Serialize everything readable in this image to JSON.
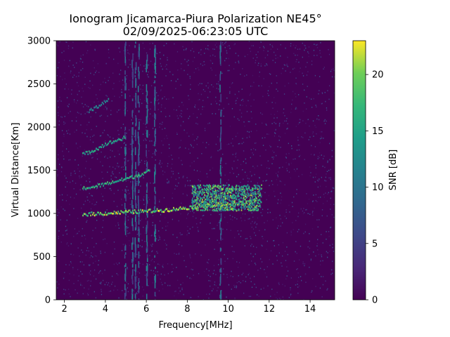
{
  "chart_data": {
    "type": "heatmap",
    "title_line1": "Ionogram Jicamarca-Piura Polarization NE45°",
    "title_line2": "02/09/2025-06:23:05 UTC",
    "xlabel": "Frequency[MHz]",
    "ylabel": "Virtual Distance[Km]",
    "xlim": [
      1.6,
      15.2
    ],
    "ylim": [
      0,
      3000
    ],
    "x_ticks": [
      2,
      4,
      6,
      8,
      10,
      12,
      14
    ],
    "y_ticks": [
      0,
      500,
      1000,
      1500,
      2000,
      2500,
      3000
    ],
    "colorbar": {
      "label": "SNR [dB]",
      "range": [
        0,
        23
      ],
      "ticks": [
        0,
        5,
        10,
        15,
        20
      ],
      "colormap": "viridis"
    },
    "background_level_db": 1,
    "traces": [
      {
        "name": "F-trace (1 hop)",
        "snr_db": 22,
        "points": [
          [
            2.9,
            990
          ],
          [
            4.0,
            1000
          ],
          [
            5.0,
            1015
          ],
          [
            6.0,
            1025
          ],
          [
            7.0,
            1040
          ],
          [
            7.8,
            1060
          ],
          [
            8.5,
            1080
          ],
          [
            9.5,
            1100
          ],
          [
            10.5,
            1115
          ],
          [
            11.2,
            1130
          ]
        ]
      },
      {
        "name": "F-trace (2 hop)",
        "snr_db": 18,
        "points": [
          [
            2.9,
            1290
          ],
          [
            3.5,
            1310
          ],
          [
            4.0,
            1340
          ],
          [
            4.5,
            1370
          ],
          [
            5.0,
            1400
          ],
          [
            5.6,
            1440
          ],
          [
            6.2,
            1500
          ]
        ]
      },
      {
        "name": "F-trace (3 hop)",
        "snr_db": 16,
        "points": [
          [
            2.9,
            1680
          ],
          [
            3.5,
            1740
          ],
          [
            4.0,
            1800
          ],
          [
            4.5,
            1840
          ],
          [
            5.0,
            1880
          ]
        ]
      },
      {
        "name": "F-trace (4 hop)",
        "snr_db": 13,
        "points": [
          [
            3.2,
            2180
          ],
          [
            3.7,
            2250
          ],
          [
            4.2,
            2330
          ]
        ]
      },
      {
        "name": "spread-F cluster",
        "snr_db": 21,
        "x_range": [
          8.2,
          11.6
        ],
        "y_range": [
          1040,
          1340
        ]
      }
    ],
    "vertical_noise_bands_mhz": [
      4.95,
      5.3,
      5.45,
      5.6,
      6.0,
      6.4,
      9.6
    ]
  }
}
